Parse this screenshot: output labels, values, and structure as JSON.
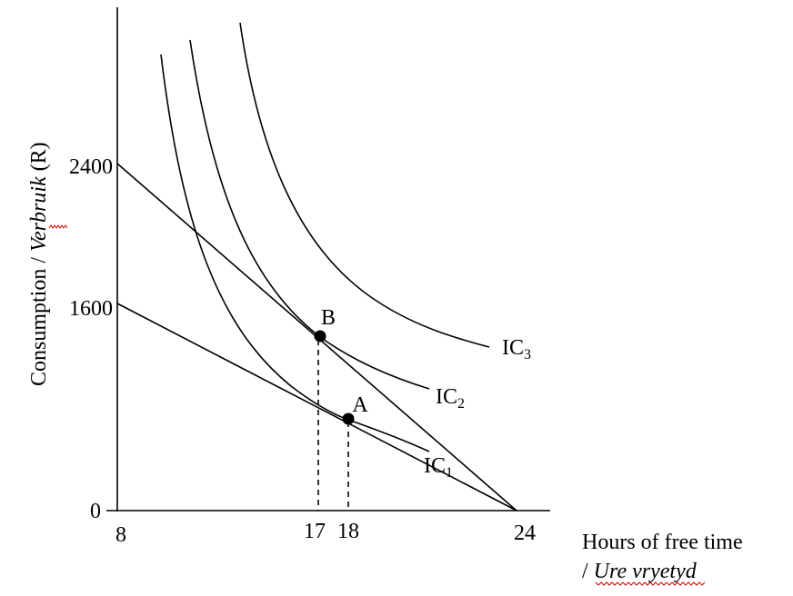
{
  "axes": {
    "y_label": "Consumption / Verbruik (R)",
    "y_label_en": "Consumption / ",
    "y_label_af": "Verbruik",
    "y_label_unit": " (R)",
    "x_label_line1": "Hours of free time",
    "x_label_line2_prefix": "/ ",
    "x_label_line2": "Ure vryetyd",
    "y_ticks": [
      "2400",
      "1600",
      "0"
    ],
    "x_ticks": [
      "8",
      "17",
      "18",
      "24"
    ]
  },
  "budget_lines": [
    {
      "from": [
        8,
        2400
      ],
      "to": [
        24,
        0
      ]
    },
    {
      "from": [
        8,
        1600
      ],
      "to": [
        24,
        0
      ]
    }
  ],
  "points": [
    {
      "label": "A",
      "x": 18,
      "y": 520
    },
    {
      "label": "B",
      "x": 17,
      "y": 995
    }
  ],
  "curves": [
    {
      "label": "IC",
      "sub": "1"
    },
    {
      "label": "IC",
      "sub": "2"
    },
    {
      "label": "IC",
      "sub": "3"
    }
  ],
  "spellcheck_color": "#d00000"
}
